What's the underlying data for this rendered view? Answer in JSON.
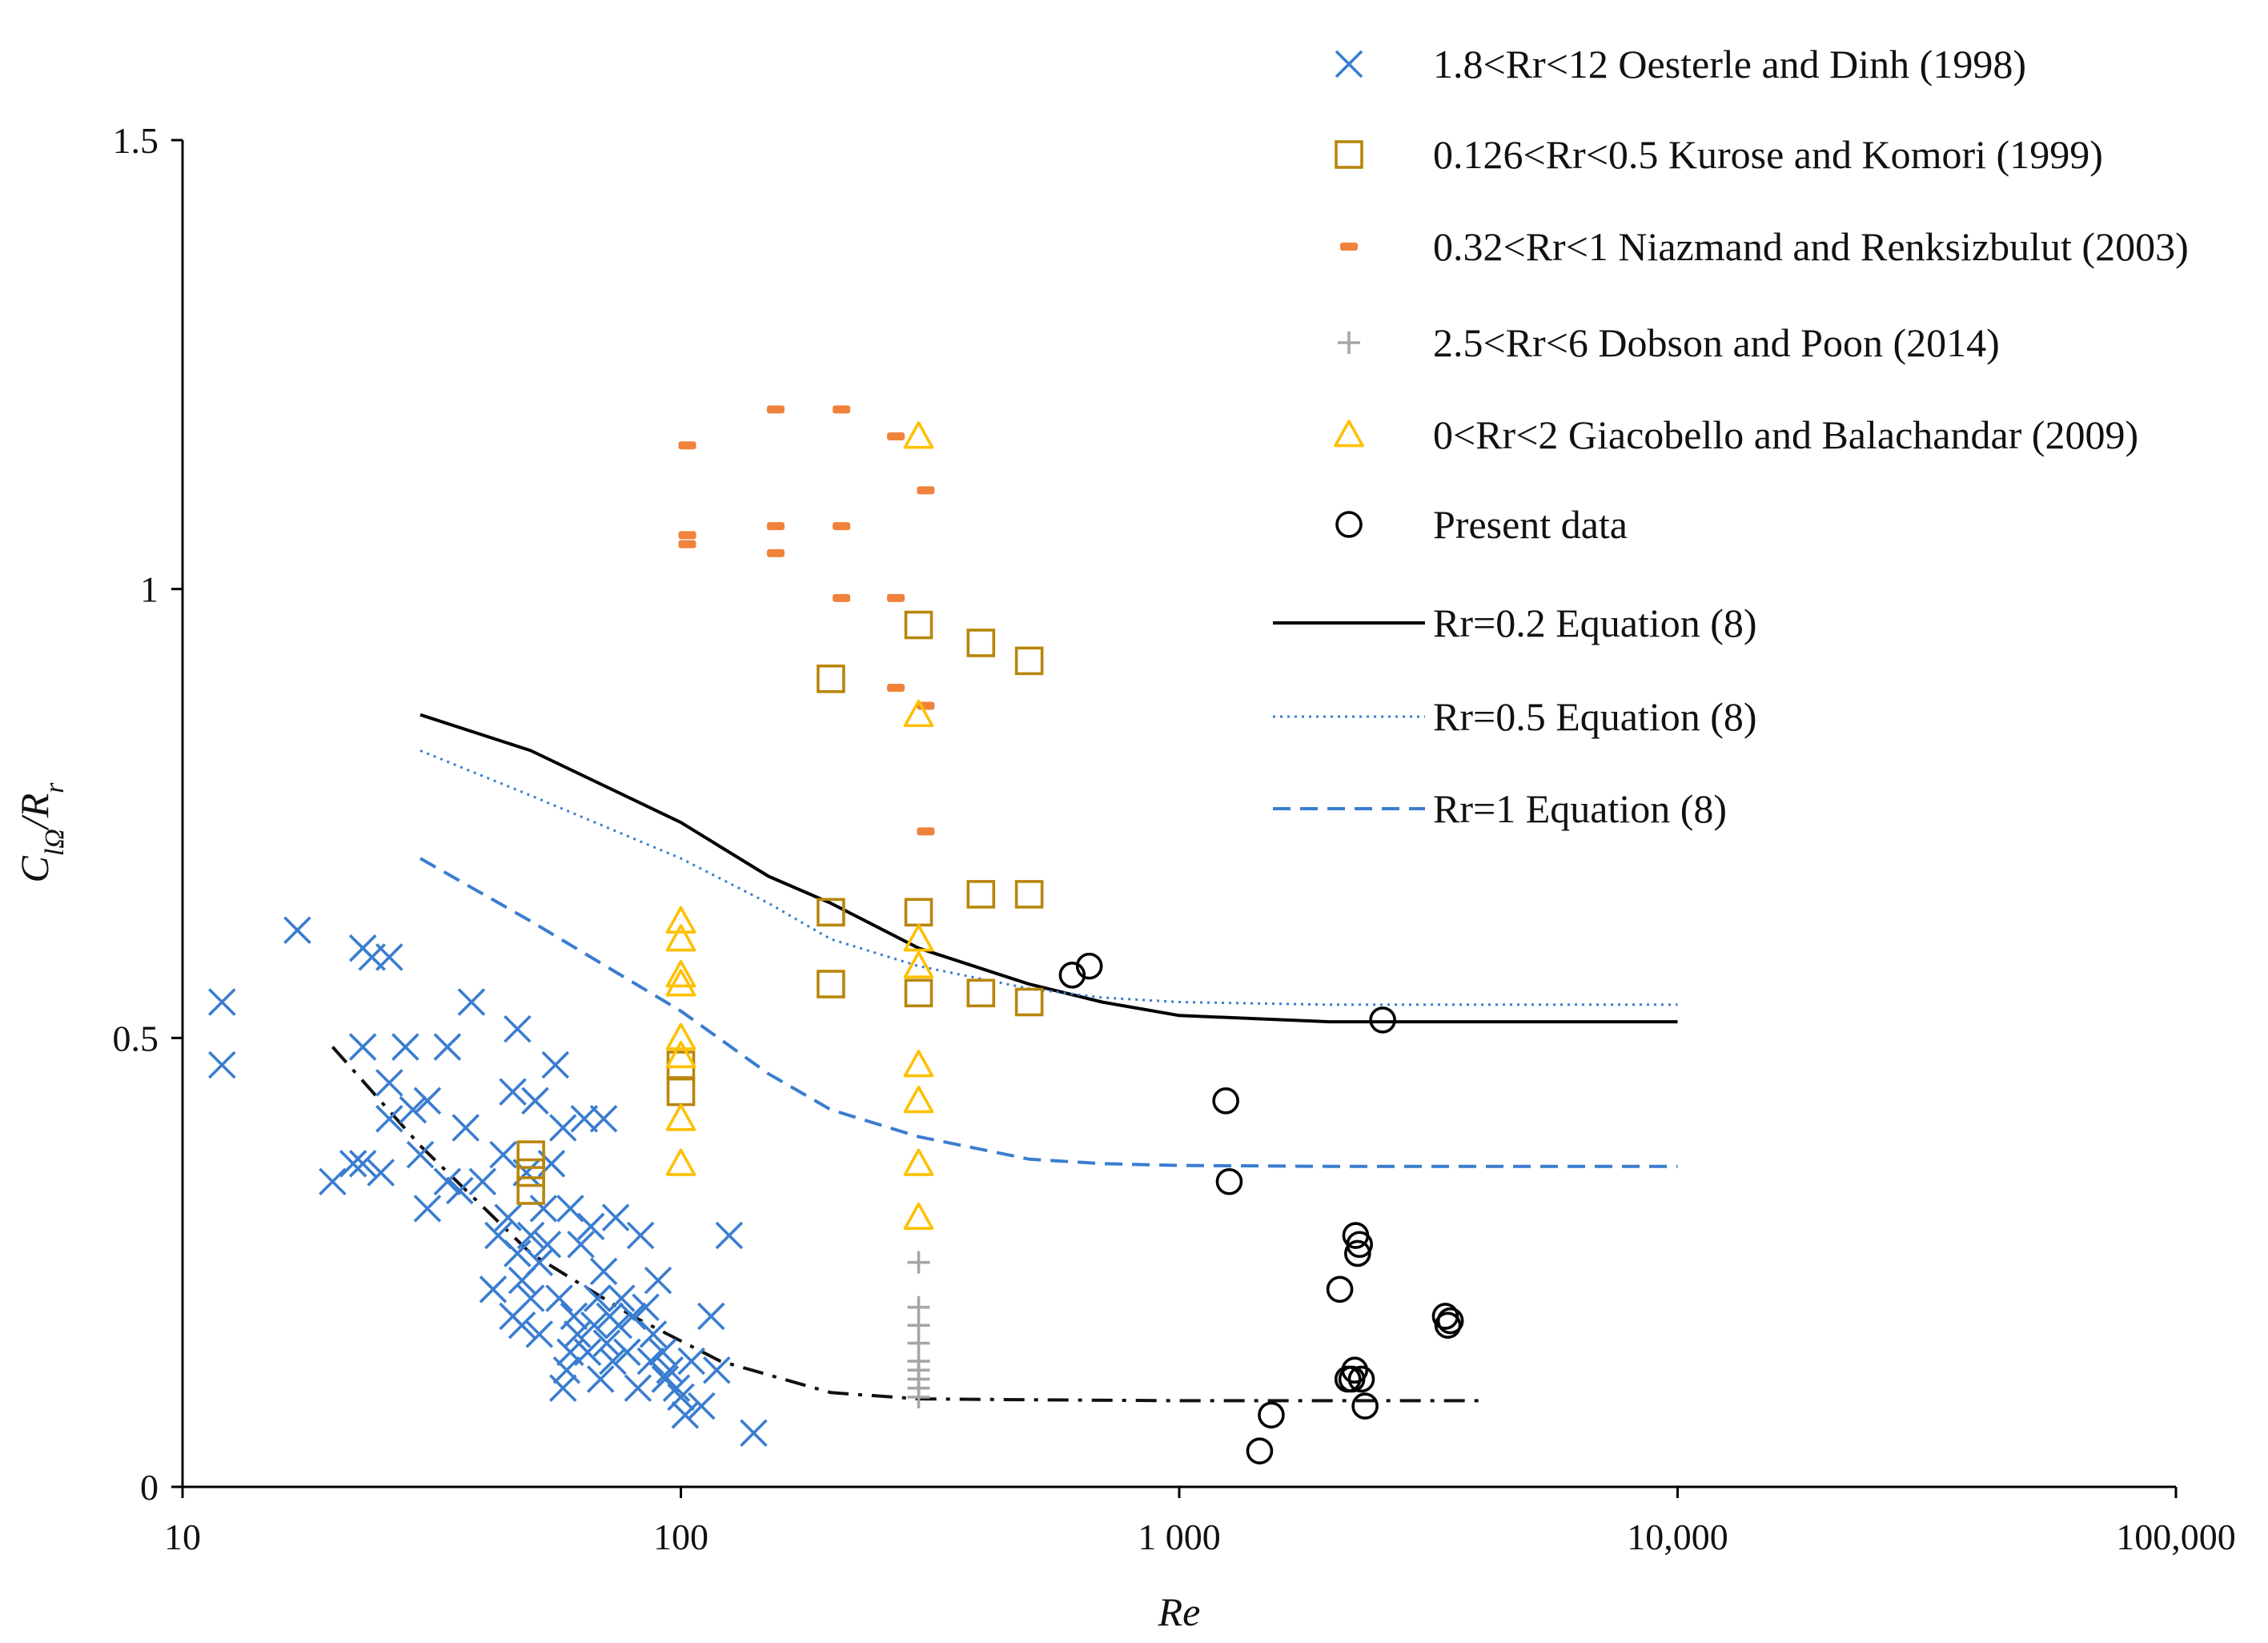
{
  "chart_data": {
    "type": "scatter",
    "xscale": "log",
    "xlabel": "Re",
    "ylabel": "C_{lΩ}/R_r",
    "xlim": [
      10,
      100000
    ],
    "ylim": [
      0,
      1.5
    ],
    "xticks": [
      {
        "value": 10,
        "label": "10"
      },
      {
        "value": 100,
        "label": "100"
      },
      {
        "value": 1000,
        "label": "1 000"
      },
      {
        "value": 10000,
        "label": "10,000"
      },
      {
        "value": 100000,
        "label": "100,000"
      }
    ],
    "yticks": [
      {
        "value": 0,
        "label": "0"
      },
      {
        "value": 0.5,
        "label": "0.5"
      },
      {
        "value": 1,
        "label": "1"
      },
      {
        "value": 1.5,
        "label": "1.5"
      }
    ],
    "legend_position": "top-right",
    "series": [
      {
        "name": "1.8<Rr<12 Oesterle and Dinh (1998)",
        "marker": "x",
        "color": "#3a7dd0",
        "points": [
          [
            12,
            0.54
          ],
          [
            12,
            0.47
          ],
          [
            17,
            0.62
          ],
          [
            20,
            0.34
          ],
          [
            22,
            0.36
          ],
          [
            23,
            0.6
          ],
          [
            23,
            0.49
          ],
          [
            23,
            0.36
          ],
          [
            24,
            0.59
          ],
          [
            25,
            0.35
          ],
          [
            26,
            0.59
          ],
          [
            26,
            0.45
          ],
          [
            26,
            0.41
          ],
          [
            28,
            0.49
          ],
          [
            29,
            0.42
          ],
          [
            30,
            0.37
          ],
          [
            31,
            0.43
          ],
          [
            31,
            0.31
          ],
          [
            34,
            0.49
          ],
          [
            34,
            0.34
          ],
          [
            36,
            0.33
          ],
          [
            37,
            0.4
          ],
          [
            38,
            0.54
          ],
          [
            40,
            0.34
          ],
          [
            42,
            0.22
          ],
          [
            43,
            0.28
          ],
          [
            44,
            0.37
          ],
          [
            45,
            0.3
          ],
          [
            46,
            0.19
          ],
          [
            46,
            0.44
          ],
          [
            47,
            0.51
          ],
          [
            47,
            0.26
          ],
          [
            48,
            0.23
          ],
          [
            48,
            0.18
          ],
          [
            49,
            0.35
          ],
          [
            50,
            0.21
          ],
          [
            50,
            0.28
          ],
          [
            51,
            0.43
          ],
          [
            52,
            0.17
          ],
          [
            52,
            0.25
          ],
          [
            53,
            0.31
          ],
          [
            54,
            0.27
          ],
          [
            55,
            0.36
          ],
          [
            56,
            0.47
          ],
          [
            57,
            0.21
          ],
          [
            58,
            0.11
          ],
          [
            58,
            0.4
          ],
          [
            59,
            0.13
          ],
          [
            60,
            0.15
          ],
          [
            60,
            0.31
          ],
          [
            61,
            0.19
          ],
          [
            62,
            0.17
          ],
          [
            63,
            0.27
          ],
          [
            64,
            0.41
          ],
          [
            65,
            0.15
          ],
          [
            66,
            0.29
          ],
          [
            67,
            0.18
          ],
          [
            68,
            0.21
          ],
          [
            69,
            0.12
          ],
          [
            70,
            0.24
          ],
          [
            70,
            0.41
          ],
          [
            71,
            0.16
          ],
          [
            72,
            0.19
          ],
          [
            73,
            0.14
          ],
          [
            74,
            0.3
          ],
          [
            75,
            0.18
          ],
          [
            76,
            0.21
          ],
          [
            78,
            0.15
          ],
          [
            80,
            0.19
          ],
          [
            82,
            0.11
          ],
          [
            83,
            0.28
          ],
          [
            85,
            0.2
          ],
          [
            87,
            0.14
          ],
          [
            88,
            0.17
          ],
          [
            90,
            0.23
          ],
          [
            92,
            0.15
          ],
          [
            93,
            0.12
          ],
          [
            95,
            0.13
          ],
          [
            98,
            0.11
          ],
          [
            100,
            0.1
          ],
          [
            102,
            0.08
          ],
          [
            105,
            0.14
          ],
          [
            110,
            0.09
          ],
          [
            115,
            0.19
          ],
          [
            118,
            0.13
          ],
          [
            125,
            0.28
          ],
          [
            140,
            0.06
          ]
        ]
      },
      {
        "name": "0.126<Rr<0.5 Kurose and Komori (1999)",
        "marker": "square",
        "color": "#b8860b",
        "points": [
          [
            50,
            0.37
          ],
          [
            50,
            0.35
          ],
          [
            50,
            0.33
          ],
          [
            100,
            0.47
          ],
          [
            100,
            0.44
          ],
          [
            200,
            0.9
          ],
          [
            200,
            0.64
          ],
          [
            200,
            0.56
          ],
          [
            300,
            0.96
          ],
          [
            300,
            0.64
          ],
          [
            300,
            0.55
          ],
          [
            400,
            0.94
          ],
          [
            400,
            0.66
          ],
          [
            400,
            0.55
          ],
          [
            500,
            0.92
          ],
          [
            500,
            0.66
          ],
          [
            500,
            0.54
          ]
        ]
      },
      {
        "name": "0.32<Rr<1 Niazmand and Renksizbulut (2003)",
        "marker": "dash",
        "color": "#f0823c",
        "points": [
          [
            103,
            1.16
          ],
          [
            103,
            1.05
          ],
          [
            103,
            1.06
          ],
          [
            155,
            1.2
          ],
          [
            155,
            1.07
          ],
          [
            155,
            1.04
          ],
          [
            210,
            1.2
          ],
          [
            210,
            1.07
          ],
          [
            210,
            0.99
          ],
          [
            270,
            1.17
          ],
          [
            270,
            0.99
          ],
          [
            270,
            0.89
          ],
          [
            310,
            1.11
          ],
          [
            310,
            0.87
          ],
          [
            310,
            0.73
          ]
        ]
      },
      {
        "name": "2.5<Rr<6 Dobson and Poon (2014)",
        "marker": "plus",
        "color": "#a6a6a6",
        "points": [
          [
            300,
            0.25
          ],
          [
            300,
            0.2
          ],
          [
            300,
            0.18
          ],
          [
            300,
            0.16
          ],
          [
            300,
            0.14
          ],
          [
            300,
            0.13
          ],
          [
            300,
            0.12
          ],
          [
            300,
            0.11
          ],
          [
            300,
            0.1
          ]
        ]
      },
      {
        "name": "0<Rr<2 Giacobello and Balachandar (2009)",
        "marker": "triangle",
        "color": "#ffc000",
        "points": [
          [
            100,
            0.63
          ],
          [
            100,
            0.61
          ],
          [
            100,
            0.57
          ],
          [
            100,
            0.56
          ],
          [
            100,
            0.5
          ],
          [
            100,
            0.48
          ],
          [
            100,
            0.41
          ],
          [
            100,
            0.36
          ],
          [
            300,
            1.17
          ],
          [
            300,
            0.86
          ],
          [
            300,
            0.61
          ],
          [
            300,
            0.58
          ],
          [
            300,
            0.47
          ],
          [
            300,
            0.43
          ],
          [
            300,
            0.36
          ],
          [
            300,
            0.3
          ]
        ]
      },
      {
        "name": "Present data",
        "marker": "circle",
        "color": "#000000",
        "points": [
          [
            610,
            0.57
          ],
          [
            660,
            0.58
          ],
          [
            1240,
            0.43
          ],
          [
            1260,
            0.34
          ],
          [
            1450,
            0.04
          ],
          [
            1530,
            0.08
          ],
          [
            2100,
            0.22
          ],
          [
            2180,
            0.12
          ],
          [
            2220,
            0.12
          ],
          [
            2250,
            0.13
          ],
          [
            2260,
            0.28
          ],
          [
            2280,
            0.26
          ],
          [
            2300,
            0.27
          ],
          [
            2320,
            0.12
          ],
          [
            2360,
            0.09
          ],
          [
            2560,
            0.52
          ],
          [
            3420,
            0.19
          ],
          [
            3460,
            0.18
          ],
          [
            3500,
            0.185
          ]
        ]
      }
    ],
    "lines": [
      {
        "name": "Rr=0.2 Equation (8)",
        "style": "solid",
        "color": "#000000",
        "points": [
          [
            30,
            0.86
          ],
          [
            50,
            0.82
          ],
          [
            100,
            0.74
          ],
          [
            150,
            0.68
          ],
          [
            200,
            0.65
          ],
          [
            300,
            0.6
          ],
          [
            500,
            0.56
          ],
          [
            700,
            0.54
          ],
          [
            1000,
            0.525
          ],
          [
            2000,
            0.518
          ],
          [
            10000,
            0.518
          ]
        ]
      },
      {
        "name": "Rr=0.5 Equation (8)",
        "style": "dotted",
        "color": "#3a7dd0",
        "points": [
          [
            30,
            0.82
          ],
          [
            50,
            0.77
          ],
          [
            100,
            0.7
          ],
          [
            150,
            0.65
          ],
          [
            200,
            0.61
          ],
          [
            300,
            0.58
          ],
          [
            500,
            0.555
          ],
          [
            700,
            0.545
          ],
          [
            1000,
            0.54
          ],
          [
            2000,
            0.537
          ],
          [
            10000,
            0.537
          ]
        ]
      },
      {
        "name": "Rr=1 Equation (8)",
        "style": "dashed",
        "color": "#3a7dd0",
        "points": [
          [
            30,
            0.7
          ],
          [
            50,
            0.63
          ],
          [
            100,
            0.53
          ],
          [
            150,
            0.46
          ],
          [
            200,
            0.42
          ],
          [
            300,
            0.39
          ],
          [
            500,
            0.365
          ],
          [
            700,
            0.36
          ],
          [
            1000,
            0.358
          ],
          [
            2000,
            0.357
          ],
          [
            10000,
            0.357
          ]
        ]
      },
      {
        "name": "",
        "style": "dashdot",
        "color": "#111111",
        "points": [
          [
            20,
            0.49
          ],
          [
            30,
            0.38
          ],
          [
            50,
            0.26
          ],
          [
            80,
            0.19
          ],
          [
            120,
            0.14
          ],
          [
            200,
            0.105
          ],
          [
            300,
            0.098
          ],
          [
            500,
            0.097
          ],
          [
            1000,
            0.096
          ],
          [
            2000,
            0.096
          ],
          [
            4000,
            0.096
          ]
        ]
      }
    ]
  }
}
